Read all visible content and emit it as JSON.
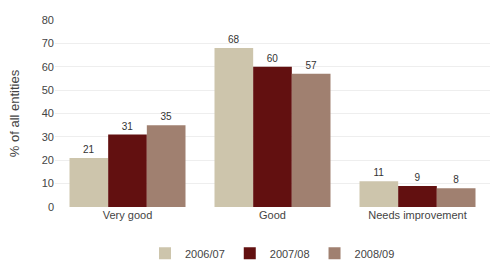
{
  "chart_data": {
    "type": "bar",
    "categories": [
      "Very good",
      "Good",
      "Needs improvement"
    ],
    "series": [
      {
        "name": "2006/07",
        "color": "#cdc5ac",
        "values": [
          21,
          68,
          11
        ]
      },
      {
        "name": "2007/08",
        "color": "#621010",
        "values": [
          31,
          60,
          9
        ]
      },
      {
        "name": "2008/09",
        "color": "#a08070",
        "values": [
          35,
          57,
          8
        ]
      }
    ],
    "ylabel": "% of all entities",
    "ylim": [
      0,
      80
    ],
    "yticks": [
      0,
      10,
      20,
      30,
      40,
      50,
      60,
      70,
      80
    ],
    "grid": true,
    "data_labels": true,
    "legend": "bottom"
  }
}
